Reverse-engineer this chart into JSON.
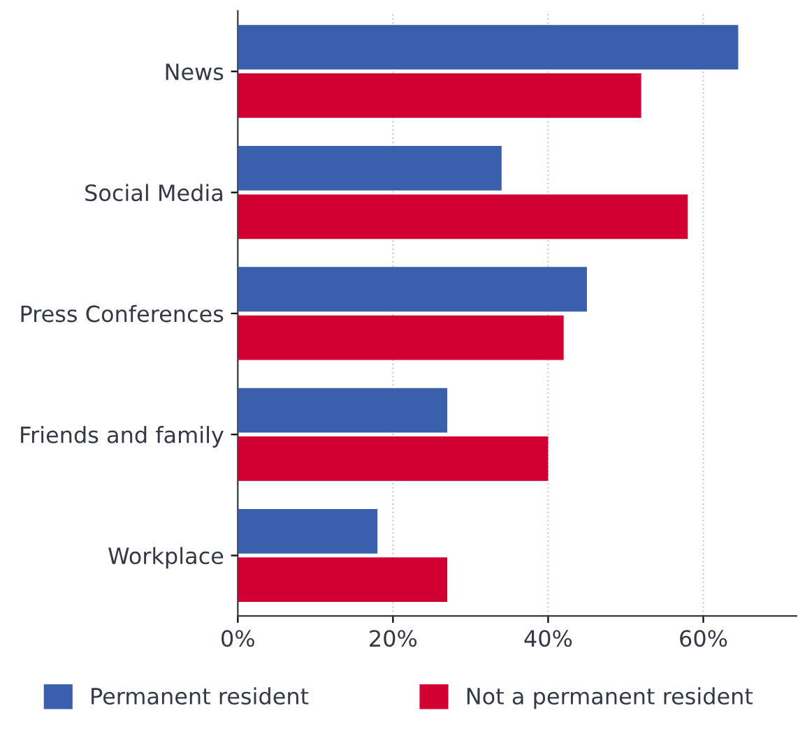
{
  "chart_data": {
    "type": "bar",
    "orientation": "horizontal",
    "categories": [
      "News",
      "Social Media",
      "Press Conferences",
      "Friends and family",
      "Workplace"
    ],
    "series": [
      {
        "name": "Permanent resident",
        "color": "#3a5fad",
        "values": [
          64.5,
          34,
          45,
          27,
          18
        ]
      },
      {
        "name": "Not a permanent resident",
        "color": "#d20032",
        "values": [
          52,
          58,
          42,
          40,
          27
        ]
      }
    ],
    "xlim": [
      0,
      72
    ],
    "xticks": [
      {
        "value": 0,
        "label": "0%"
      },
      {
        "value": 20,
        "label": "20%"
      },
      {
        "value": 40,
        "label": "40%"
      },
      {
        "value": 60,
        "label": "60%"
      }
    ],
    "grid": "x",
    "legend": "bottom"
  }
}
